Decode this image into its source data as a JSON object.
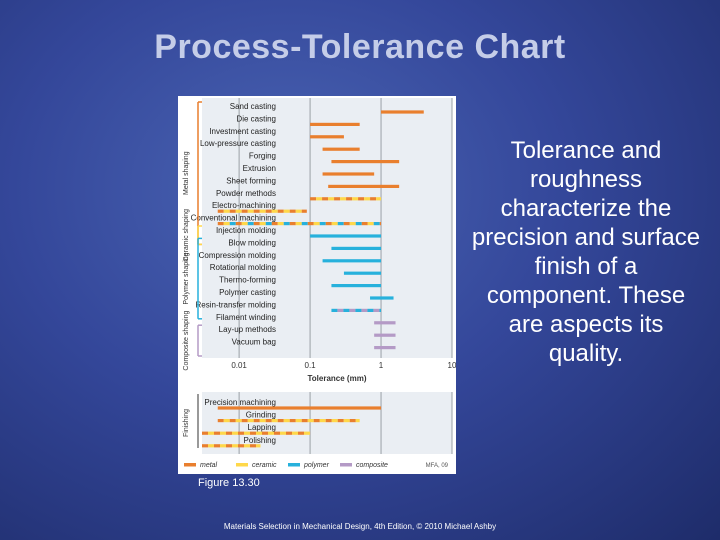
{
  "title": "Process-Tolerance Chart",
  "side_text": "Tolerance and roughness characterize the precision and surface finish of a component. These are aspects its quality.",
  "caption": "Figure 13.30",
  "credit": "Materials Selection in Mechanical Design, 4th Edition, © 2010 Michael Ashby",
  "colors": {
    "metal": "#e97f2e",
    "ceramic": "#ffd84a",
    "polymer": "#27b1dc",
    "composite": "#b49ac6",
    "gridline": "#9aa0a6",
    "bracket_line": "#555555"
  },
  "chart_data": [
    {
      "type": "range-bar",
      "xscale": "log",
      "xlim": [
        0.003,
        10
      ],
      "xticks": [
        "0.01",
        "0.1",
        "1",
        "10"
      ],
      "xlabel": "Tolerance (mm)",
      "groups": [
        {
          "label": "Metal shaping",
          "color": "metal",
          "from": 0,
          "to": 11
        },
        {
          "label": "Ceramic shaping",
          "color": "ceramic",
          "from": 10,
          "to": 11
        },
        {
          "label": "Polymer shaping",
          "color": "polymer",
          "from": 11,
          "to": 17
        },
        {
          "label": "Composite shaping",
          "color": "composite",
          "from": 18,
          "to": 20
        }
      ],
      "bars": [
        {
          "label": "Sand casting",
          "min": 1,
          "max": 4,
          "materials": [
            "metal"
          ]
        },
        {
          "label": "Die casting",
          "min": 0.1,
          "max": 0.5,
          "materials": [
            "metal"
          ]
        },
        {
          "label": "Investment casting",
          "min": 0.1,
          "max": 0.3,
          "materials": [
            "metal"
          ]
        },
        {
          "label": "Low-pressure casting",
          "min": 0.15,
          "max": 0.5,
          "materials": [
            "metal"
          ]
        },
        {
          "label": "Forging",
          "min": 0.2,
          "max": 1.8,
          "materials": [
            "metal"
          ]
        },
        {
          "label": "Extrusion",
          "min": 0.15,
          "max": 0.8,
          "materials": [
            "metal"
          ]
        },
        {
          "label": "Sheet forming",
          "min": 0.18,
          "max": 1.8,
          "materials": [
            "metal"
          ]
        },
        {
          "label": "Powder methods",
          "min": 0.1,
          "max": 1,
          "materials": [
            "metal",
            "ceramic"
          ]
        },
        {
          "label": "Electro-machining",
          "min": 0.005,
          "max": 0.09,
          "materials": [
            "metal",
            "ceramic"
          ]
        },
        {
          "label": "Conventional machining",
          "min": 0.005,
          "max": 1,
          "materials": [
            "metal",
            "ceramic",
            "polymer"
          ]
        },
        {
          "label": "Injection molding",
          "min": 0.1,
          "max": 1,
          "materials": [
            "polymer"
          ]
        },
        {
          "label": "Blow molding",
          "min": 0.2,
          "max": 1,
          "materials": [
            "polymer"
          ]
        },
        {
          "label": "Compression molding",
          "min": 0.15,
          "max": 1,
          "materials": [
            "polymer"
          ]
        },
        {
          "label": "Rotational molding",
          "min": 0.3,
          "max": 1,
          "materials": [
            "polymer"
          ]
        },
        {
          "label": "Thermo-forming",
          "min": 0.2,
          "max": 1,
          "materials": [
            "polymer"
          ]
        },
        {
          "label": "Polymer casting",
          "min": 0.7,
          "max": 1.5,
          "materials": [
            "polymer"
          ]
        },
        {
          "label": "Resin-transfer molding",
          "min": 0.2,
          "max": 1,
          "materials": [
            "polymer",
            "composite"
          ]
        },
        {
          "label": "Filament winding",
          "min": 0.8,
          "max": 1.6,
          "materials": [
            "composite"
          ]
        },
        {
          "label": "Lay-up methods",
          "min": 0.8,
          "max": 1.6,
          "materials": [
            "composite"
          ]
        },
        {
          "label": "Vacuum bag",
          "min": 0.8,
          "max": 1.6,
          "materials": [
            "composite"
          ]
        }
      ]
    },
    {
      "type": "range-bar",
      "xscale": "log",
      "xlim": [
        0.003,
        10
      ],
      "groups": [
        {
          "label": "Finishing",
          "from": 0,
          "to": 3
        }
      ],
      "bars": [
        {
          "label": "Precision machining",
          "min": 0.005,
          "max": 1,
          "materials": [
            "metal"
          ]
        },
        {
          "label": "Grinding",
          "min": 0.005,
          "max": 0.5,
          "materials": [
            "metal",
            "ceramic"
          ]
        },
        {
          "label": "Lapping",
          "min": 0.003,
          "max": 0.1,
          "materials": [
            "metal",
            "ceramic"
          ]
        },
        {
          "label": "Polishing",
          "min": 0.003,
          "max": 0.02,
          "materials": [
            "metal",
            "ceramic"
          ]
        }
      ]
    }
  ],
  "legend": [
    {
      "label": "metal",
      "color": "metal"
    },
    {
      "label": "ceramic",
      "color": "ceramic"
    },
    {
      "label": "polymer",
      "color": "polymer"
    },
    {
      "label": "composite",
      "color": "composite"
    }
  ],
  "watermark": "MFA, 09"
}
